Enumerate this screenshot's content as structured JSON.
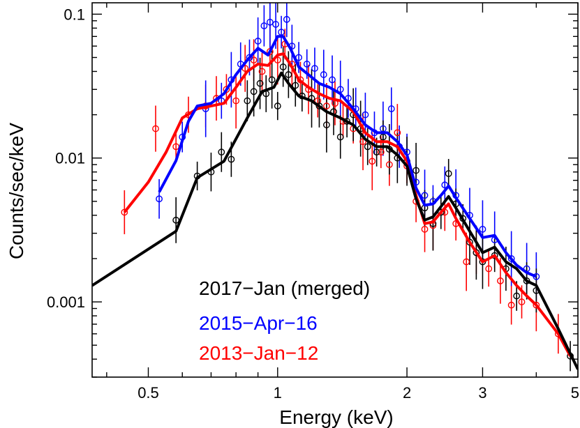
{
  "chart_data": {
    "type": "scatter",
    "title": "",
    "xlabel": "Energy (keV)",
    "ylabel": "Counts/sec/keV",
    "xscale": "log",
    "yscale": "log",
    "xlim": [
      0.37,
      5.0
    ],
    "ylim": [
      0.0003,
      0.12
    ],
    "x_ticks": [
      0.5,
      1,
      2,
      3,
      5
    ],
    "x_tick_labels": [
      "0.5",
      "1",
      "2",
      "3",
      "5"
    ],
    "y_ticks": [
      0.001,
      0.01,
      0.1
    ],
    "y_tick_labels": [
      "0.001",
      "0.01",
      "0.1"
    ],
    "legend_position": "bottom-left",
    "series": [
      {
        "name": "2017−Jan (merged)",
        "color": "#000000",
        "model": {
          "x": [
            0.37,
            0.58,
            0.65,
            0.75,
            0.85,
            0.92,
            0.98,
            1.02,
            1.06,
            1.12,
            1.2,
            1.3,
            1.4,
            1.5,
            1.6,
            1.7,
            1.8,
            1.9,
            2.0,
            2.1,
            2.2,
            2.3,
            2.4,
            2.5,
            2.6,
            2.8,
            3.0,
            3.2,
            3.4,
            3.6,
            3.8,
            4.0,
            4.5,
            5.0
          ],
          "y": [
            0.0013,
            0.0031,
            0.0073,
            0.0095,
            0.019,
            0.029,
            0.031,
            0.039,
            0.033,
            0.027,
            0.025,
            0.021,
            0.019,
            0.017,
            0.0135,
            0.012,
            0.012,
            0.0105,
            0.0088,
            0.0052,
            0.0037,
            0.0039,
            0.0046,
            0.0054,
            0.0045,
            0.0031,
            0.0022,
            0.0024,
            0.0019,
            0.0017,
            0.0014,
            0.0013,
            0.00065,
            0.00034
          ]
        },
        "points": [
          {
            "x": 0.58,
            "y": 0.0037
          },
          {
            "x": 0.65,
            "y": 0.0075
          },
          {
            "x": 0.7,
            "y": 0.008
          },
          {
            "x": 0.74,
            "y": 0.011
          },
          {
            "x": 0.78,
            "y": 0.0098
          },
          {
            "x": 0.85,
            "y": 0.025
          },
          {
            "x": 0.88,
            "y": 0.029
          },
          {
            "x": 0.91,
            "y": 0.033
          },
          {
            "x": 0.94,
            "y": 0.028
          },
          {
            "x": 0.97,
            "y": 0.035
          },
          {
            "x": 1.0,
            "y": 0.023
          },
          {
            "x": 1.03,
            "y": 0.043
          },
          {
            "x": 1.06,
            "y": 0.038
          },
          {
            "x": 1.1,
            "y": 0.032
          },
          {
            "x": 1.14,
            "y": 0.027
          },
          {
            "x": 1.2,
            "y": 0.026
          },
          {
            "x": 1.25,
            "y": 0.023
          },
          {
            "x": 1.3,
            "y": 0.017
          },
          {
            "x": 1.35,
            "y": 0.021
          },
          {
            "x": 1.4,
            "y": 0.014
          },
          {
            "x": 1.45,
            "y": 0.018
          },
          {
            "x": 1.5,
            "y": 0.02
          },
          {
            "x": 1.56,
            "y": 0.016
          },
          {
            "x": 1.62,
            "y": 0.012
          },
          {
            "x": 1.7,
            "y": 0.011
          },
          {
            "x": 1.76,
            "y": 0.014
          },
          {
            "x": 1.82,
            "y": 0.0115
          },
          {
            "x": 1.9,
            "y": 0.01
          },
          {
            "x": 2.0,
            "y": 0.0095
          },
          {
            "x": 2.1,
            "y": 0.0082
          },
          {
            "x": 2.2,
            "y": 0.0045
          },
          {
            "x": 2.3,
            "y": 0.0035
          },
          {
            "x": 2.4,
            "y": 0.0042
          },
          {
            "x": 2.5,
            "y": 0.0078
          },
          {
            "x": 2.6,
            "y": 0.0048
          },
          {
            "x": 2.7,
            "y": 0.0038
          },
          {
            "x": 2.8,
            "y": 0.0026
          },
          {
            "x": 2.9,
            "y": 0.0022
          },
          {
            "x": 3.0,
            "y": 0.0019
          },
          {
            "x": 3.2,
            "y": 0.0021
          },
          {
            "x": 3.4,
            "y": 0.0017
          },
          {
            "x": 3.6,
            "y": 0.0011
          },
          {
            "x": 3.8,
            "y": 0.0014
          },
          {
            "x": 4.0,
            "y": 0.0012
          },
          {
            "x": 4.8,
            "y": 0.00042
          }
        ]
      },
      {
        "name": "2015−Apr−16",
        "color": "#0000ff",
        "model": {
          "x": [
            0.53,
            0.58,
            0.62,
            0.65,
            0.7,
            0.75,
            0.8,
            0.85,
            0.9,
            0.95,
            1.0,
            1.03,
            1.07,
            1.12,
            1.18,
            1.25,
            1.32,
            1.4,
            1.5,
            1.6,
            1.7,
            1.8,
            1.9,
            2.0,
            2.1,
            2.2,
            2.3,
            2.4,
            2.5,
            2.6,
            2.8,
            3.0,
            3.2,
            3.4,
            3.6,
            3.8,
            4.0
          ],
          "y": [
            0.0058,
            0.0096,
            0.018,
            0.023,
            0.024,
            0.028,
            0.038,
            0.048,
            0.058,
            0.052,
            0.07,
            0.07,
            0.058,
            0.043,
            0.038,
            0.033,
            0.031,
            0.028,
            0.022,
            0.017,
            0.015,
            0.015,
            0.013,
            0.0105,
            0.0062,
            0.0047,
            0.0048,
            0.0055,
            0.0064,
            0.0053,
            0.0038,
            0.0028,
            0.0029,
            0.0022,
            0.0018,
            0.0016,
            0.0015
          ]
        },
        "points": [
          {
            "x": 0.53,
            "y": 0.0052
          },
          {
            "x": 0.6,
            "y": 0.014
          },
          {
            "x": 0.68,
            "y": 0.022
          },
          {
            "x": 0.74,
            "y": 0.025
          },
          {
            "x": 0.78,
            "y": 0.035
          },
          {
            "x": 0.82,
            "y": 0.045
          },
          {
            "x": 0.86,
            "y": 0.05
          },
          {
            "x": 0.9,
            "y": 0.065
          },
          {
            "x": 0.93,
            "y": 0.083
          },
          {
            "x": 0.96,
            "y": 0.088
          },
          {
            "x": 0.99,
            "y": 0.085
          },
          {
            "x": 1.02,
            "y": 0.075
          },
          {
            "x": 1.05,
            "y": 0.092
          },
          {
            "x": 1.08,
            "y": 0.06
          },
          {
            "x": 1.12,
            "y": 0.05
          },
          {
            "x": 1.17,
            "y": 0.045
          },
          {
            "x": 1.22,
            "y": 0.042
          },
          {
            "x": 1.28,
            "y": 0.038
          },
          {
            "x": 1.34,
            "y": 0.035
          },
          {
            "x": 1.4,
            "y": 0.03
          },
          {
            "x": 1.46,
            "y": 0.026
          },
          {
            "x": 1.52,
            "y": 0.022
          },
          {
            "x": 1.6,
            "y": 0.02
          },
          {
            "x": 1.68,
            "y": 0.015
          },
          {
            "x": 1.76,
            "y": 0.016
          },
          {
            "x": 1.84,
            "y": 0.022
          },
          {
            "x": 1.92,
            "y": 0.012
          },
          {
            "x": 2.0,
            "y": 0.011
          },
          {
            "x": 2.1,
            "y": 0.0068
          },
          {
            "x": 2.2,
            "y": 0.0055
          },
          {
            "x": 2.3,
            "y": 0.005
          },
          {
            "x": 2.45,
            "y": 0.0065
          },
          {
            "x": 2.6,
            "y": 0.0055
          },
          {
            "x": 2.8,
            "y": 0.004
          },
          {
            "x": 3.0,
            "y": 0.0032
          },
          {
            "x": 3.2,
            "y": 0.0027
          },
          {
            "x": 3.5,
            "y": 0.002
          },
          {
            "x": 3.8,
            "y": 0.0017
          },
          {
            "x": 4.0,
            "y": 0.0015
          }
        ]
      },
      {
        "name": "2013−Jan−12",
        "color": "#ff0000",
        "model": {
          "x": [
            0.44,
            0.5,
            0.55,
            0.6,
            0.65,
            0.7,
            0.75,
            0.8,
            0.85,
            0.9,
            0.95,
            1.0,
            1.03,
            1.07,
            1.12,
            1.18,
            1.25,
            1.32,
            1.4,
            1.5,
            1.6,
            1.7,
            1.8,
            1.9,
            2.0,
            2.1,
            2.2,
            2.3,
            2.4,
            2.5,
            2.6,
            2.8,
            3.0,
            3.2,
            3.4,
            3.6,
            3.8,
            4.0,
            4.5,
            4.8
          ],
          "y": [
            0.0042,
            0.0068,
            0.011,
            0.019,
            0.022,
            0.023,
            0.024,
            0.031,
            0.04,
            0.045,
            0.044,
            0.052,
            0.053,
            0.045,
            0.035,
            0.031,
            0.028,
            0.026,
            0.025,
            0.021,
            0.015,
            0.013,
            0.013,
            0.012,
            0.0095,
            0.0055,
            0.0035,
            0.0036,
            0.0042,
            0.0048,
            0.0038,
            0.0026,
            0.0019,
            0.0021,
            0.0016,
            0.0013,
            0.0011,
            0.00095,
            0.0006,
            0.00042
          ]
        },
        "points": [
          {
            "x": 0.44,
            "y": 0.0042
          },
          {
            "x": 0.52,
            "y": 0.016
          },
          {
            "x": 0.58,
            "y": 0.012
          },
          {
            "x": 0.62,
            "y": 0.02
          },
          {
            "x": 0.68,
            "y": 0.023
          },
          {
            "x": 0.72,
            "y": 0.026
          },
          {
            "x": 0.76,
            "y": 0.03
          },
          {
            "x": 0.8,
            "y": 0.025
          },
          {
            "x": 0.84,
            "y": 0.042
          },
          {
            "x": 0.88,
            "y": 0.048
          },
          {
            "x": 0.92,
            "y": 0.04
          },
          {
            "x": 0.96,
            "y": 0.055
          },
          {
            "x": 1.0,
            "y": 0.048
          },
          {
            "x": 1.04,
            "y": 0.062
          },
          {
            "x": 1.08,
            "y": 0.045
          },
          {
            "x": 1.13,
            "y": 0.035
          },
          {
            "x": 1.18,
            "y": 0.03
          },
          {
            "x": 1.24,
            "y": 0.025
          },
          {
            "x": 1.3,
            "y": 0.023
          },
          {
            "x": 1.36,
            "y": 0.024
          },
          {
            "x": 1.42,
            "y": 0.018
          },
          {
            "x": 1.5,
            "y": 0.016
          },
          {
            "x": 1.58,
            "y": 0.013
          },
          {
            "x": 1.66,
            "y": 0.0095
          },
          {
            "x": 1.74,
            "y": 0.011
          },
          {
            "x": 1.82,
            "y": 0.009
          },
          {
            "x": 1.9,
            "y": 0.015
          },
          {
            "x": 2.0,
            "y": 0.0088
          },
          {
            "x": 2.1,
            "y": 0.005
          },
          {
            "x": 2.2,
            "y": 0.0032
          },
          {
            "x": 2.3,
            "y": 0.0034
          },
          {
            "x": 2.45,
            "y": 0.0042
          },
          {
            "x": 2.6,
            "y": 0.0035
          },
          {
            "x": 2.75,
            "y": 0.0019
          },
          {
            "x": 2.9,
            "y": 0.0022
          },
          {
            "x": 3.1,
            "y": 0.0017
          },
          {
            "x": 3.3,
            "y": 0.0014
          },
          {
            "x": 3.5,
            "y": 0.00095
          },
          {
            "x": 3.7,
            "y": 0.001
          },
          {
            "x": 4.0,
            "y": 0.00095
          },
          {
            "x": 4.5,
            "y": 0.0006
          }
        ]
      }
    ]
  }
}
